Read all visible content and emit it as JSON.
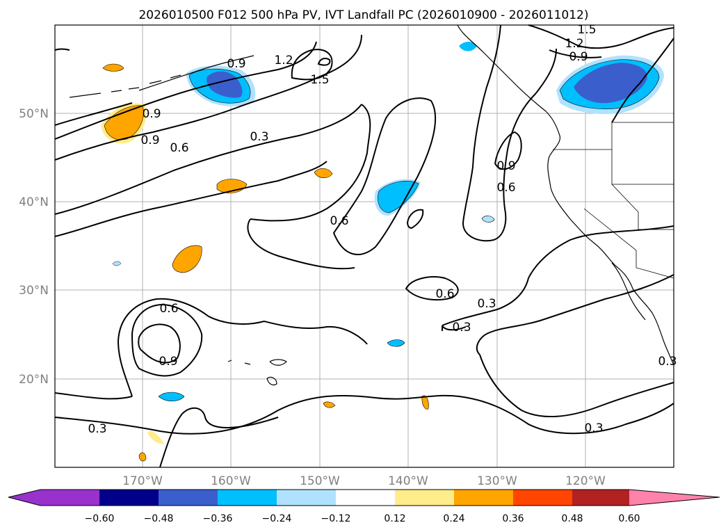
{
  "title": "2026010500 F012 500 hPa PV, IVT Landfall PC (2026010900 - 2026011012)",
  "axes": {
    "lon_labels": [
      "170°W",
      "160°W",
      "150°W",
      "140°W",
      "130°W",
      "120°W"
    ],
    "lat_labels": [
      "50°N",
      "40°N",
      "30°N",
      "20°N"
    ]
  },
  "colorbar": {
    "labels": [
      "−0.60",
      "−0.48",
      "−0.36",
      "−0.24",
      "−0.12",
      "0.12",
      "0.24",
      "0.36",
      "0.48",
      "0.60"
    ],
    "colors": {
      "under": "#9932cc",
      "b1": "#00008b",
      "b2": "#3a5fcd",
      "b3": "#00bfff",
      "b4": "#b0e2ff",
      "b5": "#ffffff",
      "b6": "#ffec8b",
      "b7": "#ffa500",
      "b8": "#ff4500",
      "b9": "#b22222",
      "over": "#ff82ab"
    }
  },
  "contour_labels": {
    "c1": "1.5",
    "c2": "1.2",
    "c3": "0.9",
    "c4": "1.5",
    "c5": "1.2",
    "c6": "0.9",
    "c7": "0.9",
    "c8": "0.9",
    "c9": "0.6",
    "c10": "0.3",
    "c11": "0.9",
    "c12": "0.6",
    "c13": "0.6",
    "c14": "0.6",
    "c15": "0.6",
    "c16": "0.3",
    "c17": "0.3",
    "c18": "0.9",
    "c19": "0.3",
    "c20": "0.3",
    "c21": "0.3"
  },
  "shading": {
    "blue_dark": "#3a5fcd",
    "blue_mid": "#00bfff",
    "blue_light": "#b0e2ff",
    "orange": "#ffa500",
    "yellow": "#ffec8b"
  }
}
